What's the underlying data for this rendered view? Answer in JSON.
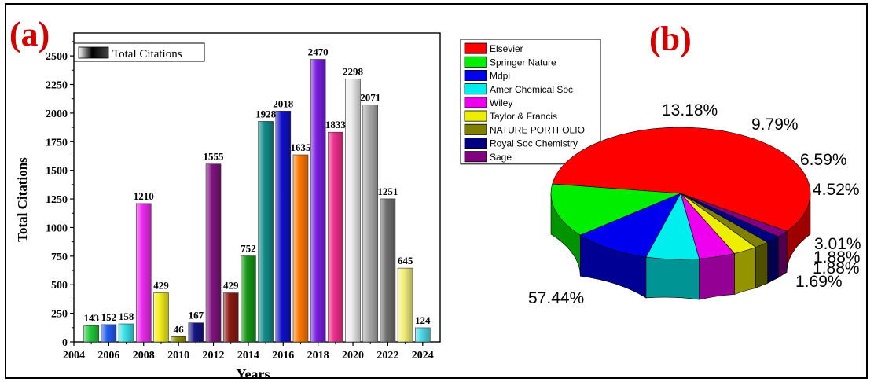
{
  "panels": {
    "a": "(a)",
    "b": "(b)"
  },
  "chart_data": [
    {
      "type": "bar",
      "xlabel": "Years",
      "ylabel": "Total Citations",
      "legend": "Total Citations",
      "legend_position": "top-left",
      "grid": false,
      "xlim": [
        2004,
        2025
      ],
      "ylim": [
        0,
        2700
      ],
      "x_ticks": [
        2004,
        2006,
        2008,
        2010,
        2012,
        2014,
        2016,
        2018,
        2020,
        2022,
        2024
      ],
      "y_ticks": [
        0,
        250,
        500,
        750,
        1000,
        1250,
        1500,
        1750,
        2000,
        2250,
        2500
      ],
      "x": [
        2005,
        2006,
        2007,
        2008,
        2009,
        2010,
        2011,
        2012,
        2013,
        2014,
        2015,
        2016,
        2017,
        2018,
        2019,
        2020,
        2021,
        2022,
        2023,
        2024
      ],
      "values": [
        143,
        152,
        158,
        1210,
        429,
        46,
        167,
        1555,
        429,
        752,
        1928,
        2018,
        1635,
        2470,
        1833,
        2298,
        2071,
        1251,
        645,
        124
      ],
      "colors": [
        "#22c83a",
        "#1f5cf0",
        "#37e0e6",
        "#ee2bee",
        "#f2ef1a",
        "#8f8f00",
        "#151583",
        "#7f137f",
        "#8b1a12",
        "#169617",
        "#138b8b",
        "#1010c8",
        "#ff7a00",
        "#7a1ee0",
        "#ee2e8c",
        "#ededed",
        "#a9a9a9",
        "#6f6f6f",
        "#f2ef7a",
        "#4fd8e8"
      ]
    },
    {
      "type": "pie",
      "legend_position": "top-left",
      "categories": [
        "Elsevier",
        "Springer Nature",
        "Mdpi",
        "Amer Chemical Soc",
        "Wiley",
        "Taylor & Francis",
        "NATURE PORTFOLIO",
        "Royal Soc Chemistry",
        "Sage"
      ],
      "values": [
        57.44,
        13.18,
        9.79,
        6.59,
        4.52,
        3.01,
        1.88,
        1.88,
        1.69
      ],
      "labels": [
        "57.44%",
        "13.18%",
        "9.79%",
        "6.59%",
        "4.52%",
        "3.01%",
        "1.88%",
        "1.88%",
        "1.69%"
      ],
      "colors": [
        "#ff0000",
        "#00ee00",
        "#0000ee",
        "#00eeee",
        "#ee00ee",
        "#eeee00",
        "#808000",
        "#000080",
        "#800080"
      ]
    }
  ]
}
